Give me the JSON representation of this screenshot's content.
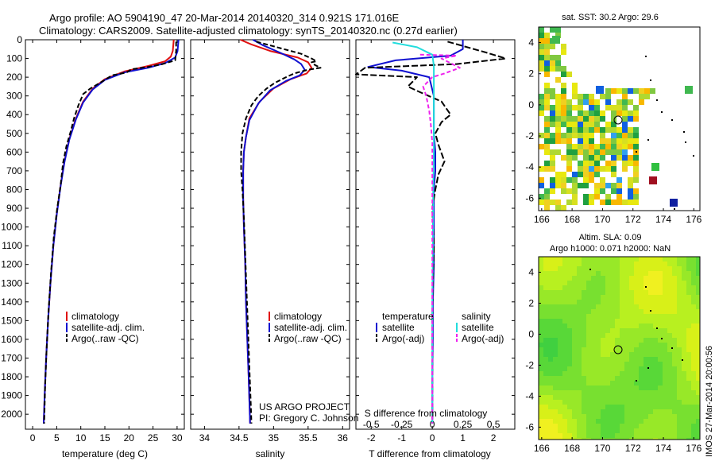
{
  "title": {
    "line1": "Argo profile: AO 5904190_47 20-Mar-2014 20140320_314 0.921S 171.016E",
    "line2": "Climatology: CARS2009. Satellite-adjusted climatology: synTS_20140320.nc (0.27d earlier)"
  },
  "colors": {
    "climatology": "#e01010",
    "satellite": "#1010d0",
    "argo": "#000000",
    "sal_satellite": "#22dddd",
    "sal_argo": "#ee22ee"
  },
  "depth_axis": {
    "ticks": [
      0,
      100,
      200,
      300,
      400,
      500,
      600,
      700,
      800,
      900,
      1000,
      1100,
      1200,
      1300,
      1400,
      1500,
      1600,
      1700,
      1800,
      1900,
      2000
    ],
    "range": [
      0,
      2080
    ]
  },
  "credit": {
    "line1": "US ARGO PROJECT",
    "line2": "PI: Gregory C. Johnson"
  },
  "watermark": "IMOS 27-Mar-2014 20:00:56",
  "chart_data": [
    {
      "type": "line",
      "xlabel": "temperature (deg C)",
      "x_ticks": [
        "0",
        "5",
        "10",
        "15",
        "20",
        "25",
        "30"
      ],
      "xlim": [
        -1.5,
        31.5
      ],
      "legend": [
        "climatology",
        "satellite-adj. clim.",
        "Argo(..raw -QC)"
      ],
      "series": [
        {
          "name": "climatology",
          "points": [
            [
              29.3,
              0
            ],
            [
              29.1,
              60
            ],
            [
              28.7,
              90
            ],
            [
              27.5,
              115
            ],
            [
              24,
              140
            ],
            [
              19,
              170
            ],
            [
              15,
              210
            ],
            [
              12.5,
              260
            ],
            [
              10.5,
              330
            ],
            [
              9,
              420
            ],
            [
              7.6,
              530
            ],
            [
              6.6,
              650
            ],
            [
              5.8,
              780
            ],
            [
              5,
              930
            ],
            [
              4.3,
              1100
            ],
            [
              3.7,
              1300
            ],
            [
              3.2,
              1500
            ],
            [
              2.8,
              1700
            ],
            [
              2.5,
              1900
            ],
            [
              2.3,
              2050
            ]
          ]
        },
        {
          "name": "satellite-adj. clim.",
          "points": [
            [
              30.3,
              0
            ],
            [
              30.1,
              60
            ],
            [
              29.6,
              95
            ],
            [
              27.5,
              125
            ],
            [
              24,
              150
            ],
            [
              19,
              175
            ],
            [
              15,
              215
            ],
            [
              12.5,
              265
            ],
            [
              10.5,
              335
            ],
            [
              9,
              425
            ],
            [
              7.6,
              535
            ],
            [
              6.6,
              655
            ],
            [
              5.8,
              785
            ],
            [
              5,
              935
            ],
            [
              4.3,
              1100
            ],
            [
              3.7,
              1300
            ],
            [
              3.2,
              1500
            ],
            [
              2.8,
              1700
            ],
            [
              2.5,
              1900
            ],
            [
              2.3,
              2050
            ]
          ]
        },
        {
          "name": "Argo(..raw -QC)",
          "points": [
            [
              29.8,
              10
            ],
            [
              29.8,
              60
            ],
            [
              29.6,
              110
            ],
            [
              27,
              130
            ],
            [
              24,
              145
            ],
            [
              20.5,
              158
            ],
            [
              19.5,
              175
            ],
            [
              16.5,
              190
            ],
            [
              14,
              230
            ],
            [
              12,
              260
            ],
            [
              10.5,
              290
            ],
            [
              9.5,
              350
            ],
            [
              8.6,
              420
            ],
            [
              7.9,
              490
            ],
            [
              7,
              570
            ],
            [
              6.3,
              660
            ],
            [
              5.8,
              780
            ],
            [
              5.1,
              900
            ],
            [
              4.4,
              1050
            ],
            [
              3.8,
              1250
            ],
            [
              3.3,
              1450
            ],
            [
              2.9,
              1650
            ],
            [
              2.6,
              1850
            ],
            [
              2.4,
              2050
            ]
          ]
        }
      ]
    },
    {
      "type": "line",
      "xlabel": "salinity",
      "x_ticks": [
        "34",
        "34.5",
        "35",
        "35.5",
        "36"
      ],
      "xlim": [
        33.8,
        36.1
      ],
      "legend": [
        "climatology",
        "satellite-adj. clim.",
        "Argo(..raw -QC)"
      ],
      "series": [
        {
          "name": "climatology",
          "points": [
            [
              34.52,
              0
            ],
            [
              34.68,
              25
            ],
            [
              34.95,
              60
            ],
            [
              35.35,
              95
            ],
            [
              35.5,
              120
            ],
            [
              35.55,
              150
            ],
            [
              35.48,
              180
            ],
            [
              35.25,
              210
            ],
            [
              35.0,
              260
            ],
            [
              34.8,
              330
            ],
            [
              34.65,
              420
            ],
            [
              34.6,
              520
            ],
            [
              34.57,
              600
            ],
            [
              34.56,
              700
            ],
            [
              34.56,
              850
            ],
            [
              34.57,
              1000
            ],
            [
              34.59,
              1200
            ],
            [
              34.6,
              1400
            ],
            [
              34.62,
              1600
            ],
            [
              34.64,
              1800
            ],
            [
              34.66,
              2050
            ]
          ]
        },
        {
          "name": "satellite-adj. clim.",
          "points": [
            [
              34.7,
              0
            ],
            [
              34.85,
              30
            ],
            [
              35.1,
              70
            ],
            [
              35.3,
              105
            ],
            [
              35.4,
              130
            ],
            [
              35.45,
              160
            ],
            [
              35.38,
              190
            ],
            [
              35.18,
              220
            ],
            [
              34.95,
              270
            ],
            [
              34.78,
              340
            ],
            [
              34.65,
              430
            ],
            [
              34.6,
              520
            ],
            [
              34.57,
              600
            ],
            [
              34.56,
              700
            ],
            [
              34.56,
              850
            ],
            [
              34.57,
              1000
            ],
            [
              34.59,
              1200
            ],
            [
              34.6,
              1400
            ],
            [
              34.62,
              1600
            ],
            [
              34.64,
              1800
            ],
            [
              34.66,
              2050
            ]
          ]
        },
        {
          "name": "Argo(..raw -QC)",
          "points": [
            [
              34.75,
              10
            ],
            [
              35.1,
              45
            ],
            [
              35.4,
              75
            ],
            [
              35.55,
              100
            ],
            [
              35.62,
              115
            ],
            [
              35.55,
              120
            ],
            [
              35.6,
              135
            ],
            [
              35.68,
              150
            ],
            [
              35.5,
              160
            ],
            [
              35.3,
              180
            ],
            [
              35.18,
              200
            ],
            [
              35.02,
              230
            ],
            [
              34.9,
              260
            ],
            [
              34.78,
              300
            ],
            [
              34.68,
              350
            ],
            [
              34.6,
              420
            ],
            [
              34.55,
              500
            ],
            [
              34.53,
              600
            ],
            [
              34.53,
              700
            ],
            [
              34.55,
              800
            ],
            [
              34.57,
              950
            ],
            [
              34.59,
              1150
            ],
            [
              34.61,
              1350
            ],
            [
              34.63,
              1550
            ],
            [
              34.65,
              1750
            ],
            [
              34.67,
              1950
            ],
            [
              34.68,
              2050
            ]
          ]
        }
      ]
    },
    {
      "type": "line",
      "xlabel": "T difference from climatology",
      "xlabel_top": "S difference from climatology",
      "x_ticks": [
        "-2",
        "-1",
        "0",
        "1",
        "2"
      ],
      "x_ticks_top": [
        "-0.5",
        "-0.25",
        "0",
        "0.25",
        "0.5"
      ],
      "xlim": [
        -2.5,
        2.7
      ],
      "legend": [
        "temperature",
        "satellite",
        "Argo(-adj)",
        "salinity",
        "satellite",
        "Argo(-adj)"
      ],
      "series": [
        {
          "name": "temperature satellite",
          "points": [
            [
              1.0,
              0
            ],
            [
              1.0,
              50
            ],
            [
              0.6,
              85
            ],
            [
              -1.2,
              110
            ],
            [
              -2.1,
              145
            ],
            [
              -1.0,
              165
            ],
            [
              -0.1,
              200
            ],
            [
              0.05,
              300
            ],
            [
              0.05,
              400
            ],
            [
              0.05,
              500
            ],
            [
              0.1,
              600
            ],
            [
              0.1,
              700
            ],
            [
              0.05,
              800
            ],
            [
              0.05,
              900
            ],
            [
              0.05,
              1000
            ],
            [
              0.05,
              1200
            ],
            [
              0.02,
              1400
            ],
            [
              0.02,
              1600
            ],
            [
              0,
              1800
            ],
            [
              0,
              2050
            ]
          ]
        },
        {
          "name": "temperature Argo(-adj)",
          "points": [
            [
              0.5,
              10
            ],
            [
              1.8,
              70
            ],
            [
              2.4,
              100
            ],
            [
              0.8,
              130
            ],
            [
              -2.2,
              150
            ],
            [
              -2.5,
              185
            ],
            [
              -0.5,
              200
            ],
            [
              -0.8,
              250
            ],
            [
              -0.4,
              280
            ],
            [
              0.3,
              330
            ],
            [
              0.6,
              400
            ],
            [
              0.3,
              440
            ],
            [
              0.1,
              500
            ],
            [
              0.2,
              560
            ],
            [
              0.4,
              650
            ],
            [
              0.2,
              720
            ],
            [
              0.1,
              800
            ],
            [
              0,
              900
            ],
            [
              0.05,
              1100
            ],
            [
              0.02,
              1300
            ],
            [
              0,
              1500
            ],
            [
              0,
              1700
            ],
            [
              0,
              1900
            ],
            [
              0,
              2050
            ]
          ]
        },
        {
          "name": "salinity satellite",
          "points": [
            [
              -1.3,
              15
            ],
            [
              -0.5,
              40
            ],
            [
              0,
              80
            ],
            [
              0.05,
              140
            ],
            [
              0.05,
              200
            ],
            [
              0.05,
              300
            ],
            [
              0.05,
              400
            ],
            [
              0.05,
              600
            ],
            [
              0.03,
              800
            ],
            [
              0.02,
              1100
            ],
            [
              0,
              1400
            ],
            [
              0,
              2050
            ]
          ]
        },
        {
          "name": "salinity Argo(-adj)",
          "points": [
            [
              -0.4,
              80
            ],
            [
              0.8,
              85
            ],
            [
              0.3,
              100
            ],
            [
              0.9,
              150
            ],
            [
              0.4,
              180
            ],
            [
              0,
              200
            ],
            [
              -0.3,
              250
            ],
            [
              -0.2,
              300
            ],
            [
              -0.1,
              380
            ],
            [
              -0.05,
              450
            ],
            [
              0,
              550
            ],
            [
              0,
              700
            ],
            [
              0,
              900
            ],
            [
              0,
              1200
            ],
            [
              0,
              1600
            ],
            [
              0,
              2050
            ]
          ]
        }
      ]
    },
    {
      "type": "heatmap",
      "title": "sat. SST: 30.2  Argo: 29.6",
      "x_ticks": [
        "166",
        "168",
        "170",
        "172",
        "174",
        "176"
      ],
      "y_ticks": [
        "4",
        "2",
        "0",
        "-2",
        "-4",
        "-6"
      ],
      "xlim": [
        165.8,
        176.4
      ],
      "ylim": [
        -6.8,
        5.0
      ],
      "argo_position": [
        171.016,
        -0.921
      ]
    },
    {
      "type": "heatmap",
      "title_line1": "Altim. SLA: 0.09",
      "title_line2": "Argo h1000: 0.071  h2000: NaN",
      "x_ticks": [
        "166",
        "168",
        "170",
        "172",
        "174",
        "176"
      ],
      "y_ticks": [
        "4",
        "2",
        "0",
        "-2",
        "-4",
        "-6"
      ],
      "xlim": [
        165.8,
        176.4
      ],
      "ylim": [
        -6.8,
        5.0
      ],
      "argo_position": [
        171.016,
        -0.921
      ]
    }
  ]
}
